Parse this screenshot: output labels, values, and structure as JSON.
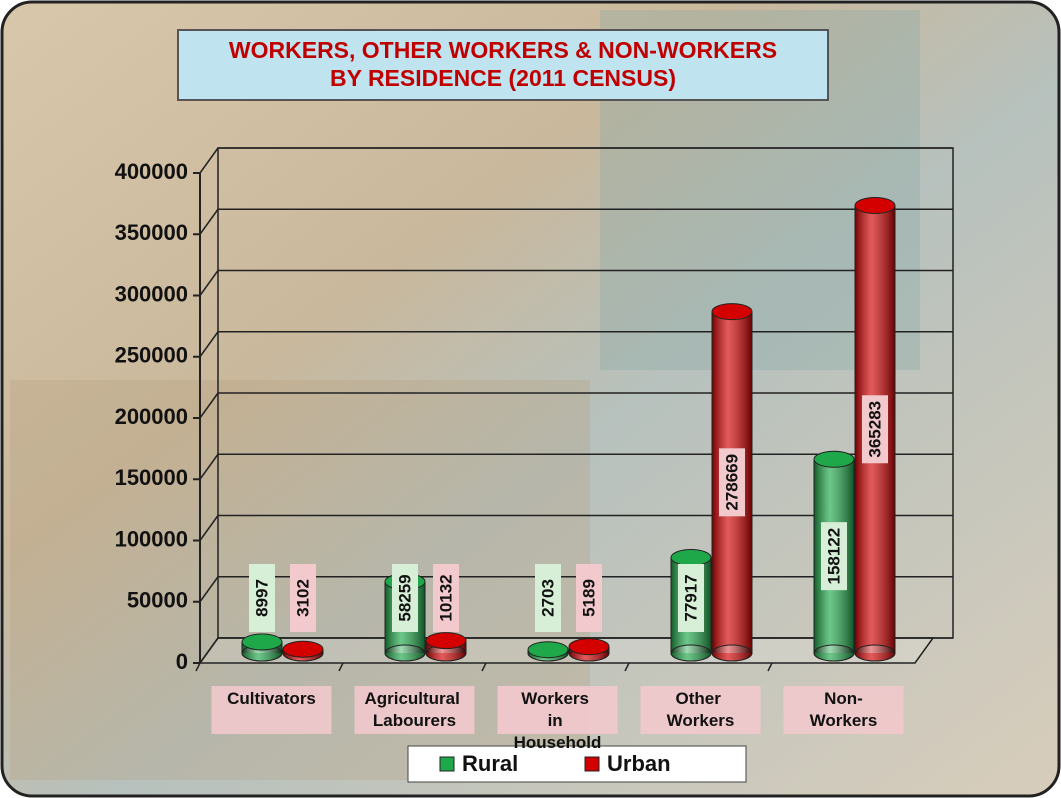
{
  "chart_data": {
    "type": "bar",
    "title": [
      "WORKERS, OTHER WORKERS & NON-WORKERS",
      "BY RESIDENCE (2011 CENSUS)"
    ],
    "categories": [
      "Cultivators",
      "Agricultural Labourers",
      "Workers in Household",
      "Other Workers",
      "Non-Workers"
    ],
    "series": [
      {
        "name": "Rural",
        "color": "#1fa84a",
        "values": [
          8997,
          58259,
          2703,
          77917,
          158122
        ]
      },
      {
        "name": "Urban",
        "color": "#d40000",
        "values": [
          3102,
          10132,
          5189,
          278669,
          365283
        ]
      }
    ],
    "ylim": [
      0,
      400000
    ],
    "yticks": [
      0,
      50000,
      100000,
      150000,
      200000,
      250000,
      300000,
      350000,
      400000
    ],
    "grid": true,
    "legend": "bottom"
  }
}
